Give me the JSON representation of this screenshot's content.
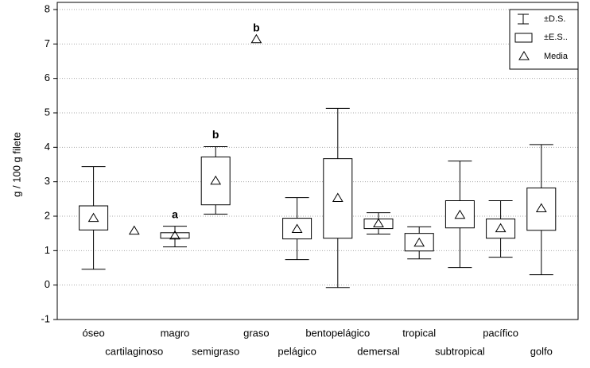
{
  "chart_data": {
    "type": "box",
    "y_label": "g / 100 g filete",
    "categories": [
      "óseo",
      "cartilaginoso",
      "magro",
      "semigraso",
      "graso",
      "pelágico",
      "bentopelágico",
      "demersal",
      "tropical",
      "subtropical",
      "pacífico",
      "golfo"
    ],
    "mean": [
      1.94,
      1.57,
      1.43,
      3.02,
      7.13,
      1.62,
      2.52,
      1.78,
      1.22,
      2.03,
      1.64,
      2.22
    ],
    "box_low": [
      1.6,
      null,
      1.36,
      2.33,
      null,
      1.34,
      1.36,
      1.64,
      0.99,
      1.66,
      1.36,
      1.59
    ],
    "box_high": [
      2.3,
      null,
      1.52,
      3.72,
      null,
      1.94,
      3.67,
      1.92,
      1.5,
      2.45,
      1.92,
      2.82
    ],
    "whisker_low": [
      0.46,
      null,
      1.11,
      2.06,
      null,
      0.74,
      -0.07,
      1.48,
      0.76,
      0.51,
      0.81,
      0.3
    ],
    "whisker_high": [
      3.44,
      null,
      1.71,
      4.02,
      null,
      2.54,
      5.13,
      2.1,
      1.69,
      3.6,
      2.45,
      4.08
    ],
    "letters": [
      null,
      null,
      "a",
      "b",
      "b",
      null,
      null,
      null,
      null,
      null,
      null,
      null
    ],
    "legend": [
      "±D.S.",
      "±E.S..",
      "Media"
    ],
    "ylim": [
      -1,
      8
    ],
    "yticks": [
      -1,
      0,
      1,
      2,
      3,
      4,
      5,
      6,
      7,
      8
    ],
    "grid": true
  }
}
